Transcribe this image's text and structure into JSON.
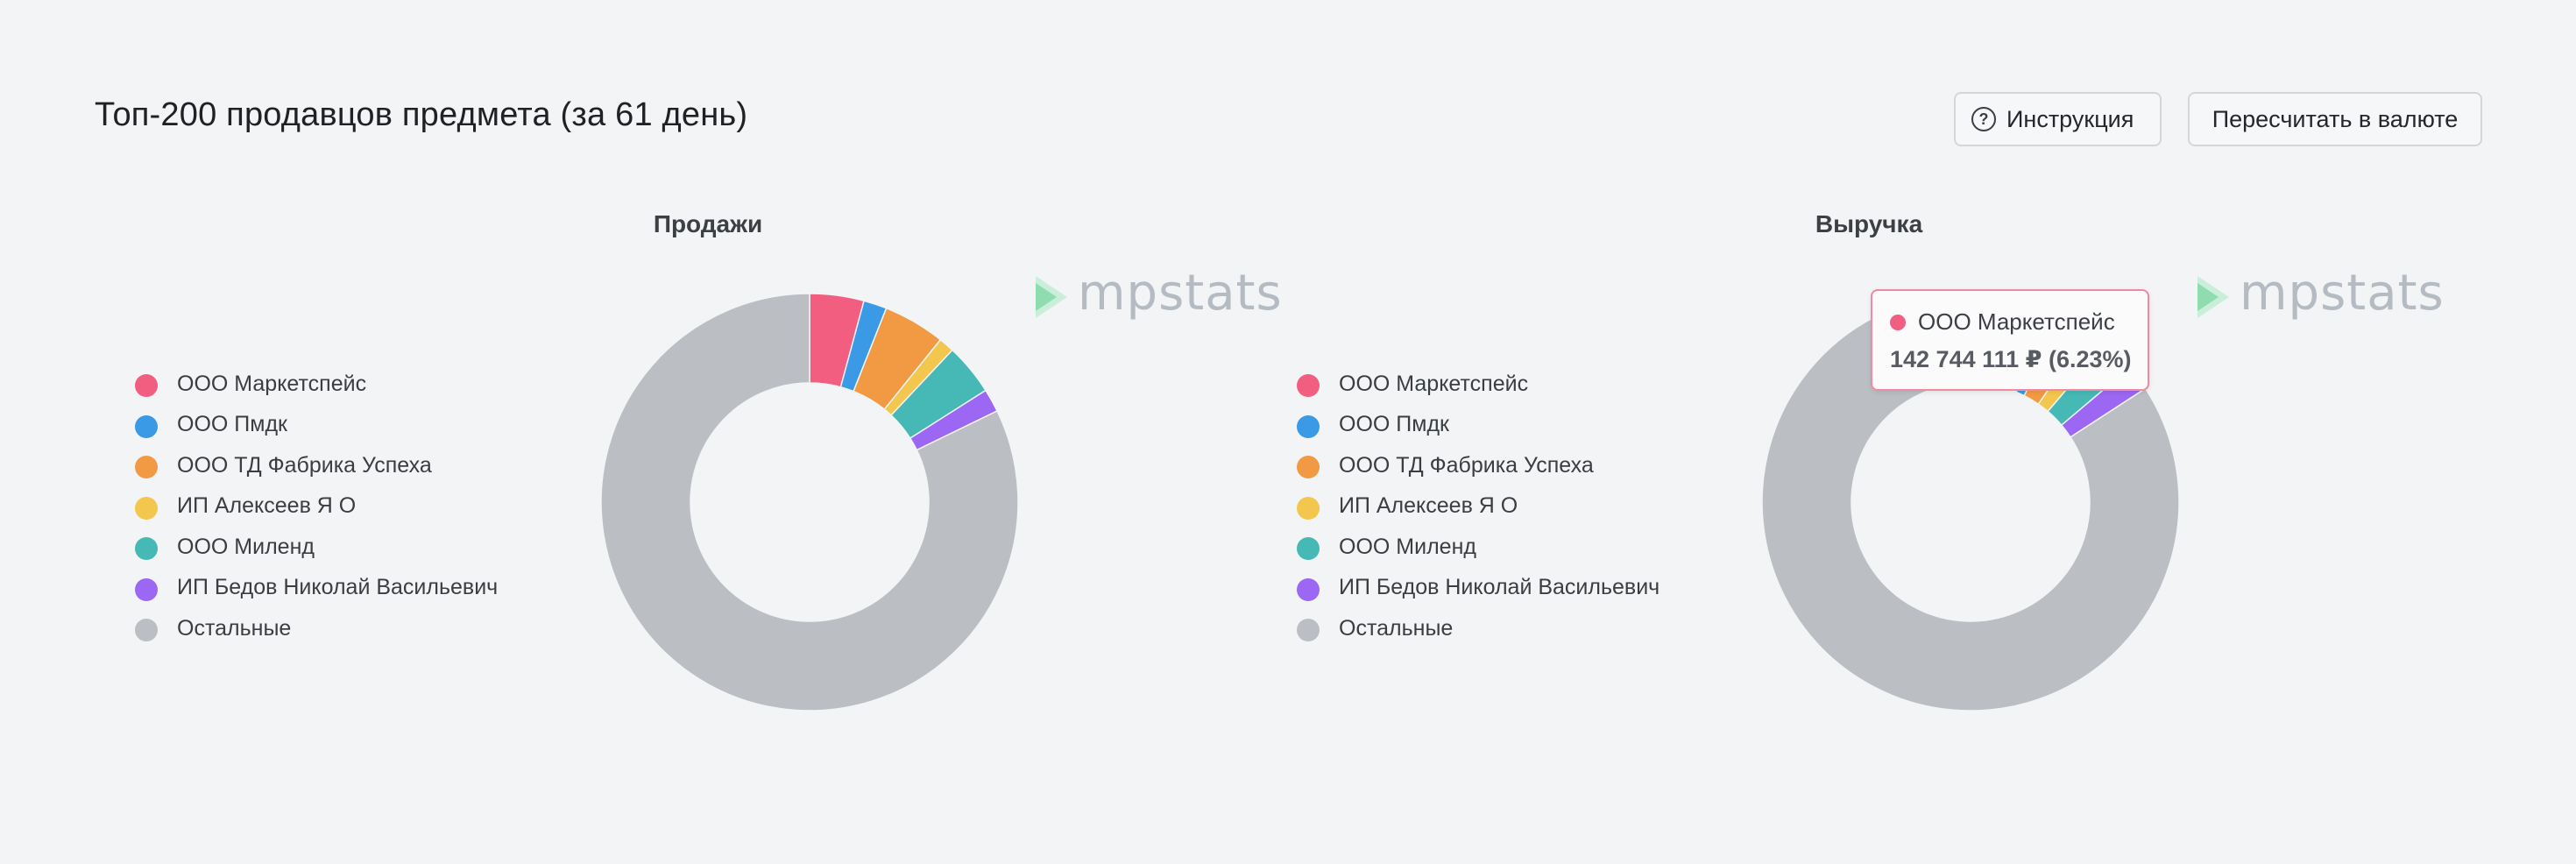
{
  "header": {
    "title": "Топ-200 продавцов предмета (за 61 день)",
    "help_button": "Инструкция",
    "currency_button": "Пересчитать в валюте"
  },
  "watermark": "mpstats",
  "chart_data": [
    {
      "type": "pie",
      "title": "Продажи",
      "legend_position": "left",
      "labels": [
        "ООО Маркетспейс",
        "ООО Пмдк",
        "ООО ТД Фабрика Успеха",
        "ИП Алексеев Я О",
        "ООО Миленд",
        "ИП Бедов Николай Васильевич",
        "Остальные"
      ],
      "colors": [
        "#f15e80",
        "#3a9ae5",
        "#f29a43",
        "#f3c64d",
        "#46b8b5",
        "#9c67f2",
        "#bbbfc3"
      ],
      "values": [
        4.2,
        1.8,
        4.8,
        1.2,
        4.0,
        1.8,
        82.2
      ]
    },
    {
      "type": "pie",
      "title": "Выручка",
      "legend_position": "left",
      "labels": [
        "ООО Маркетспейс",
        "ООО Пмдк",
        "ООО ТД Фабрика Успеха",
        "ИП Алексеев Я О",
        "ООО Миленд",
        "ИП Бедов Николай Васильевич",
        "Остальные"
      ],
      "colors": [
        "#f15e80",
        "#3a9ae5",
        "#f29a43",
        "#f3c64d",
        "#46b8b5",
        "#9c67f2",
        "#bbbfc3"
      ],
      "values": [
        6.23,
        1.2,
        2.2,
        1.6,
        2.6,
        2.0,
        84.17
      ]
    }
  ],
  "tooltip": {
    "name": "ООО Маркетспейс",
    "value": "142 744 111 ₽ (6.23%)",
    "color": "#f15e80"
  }
}
